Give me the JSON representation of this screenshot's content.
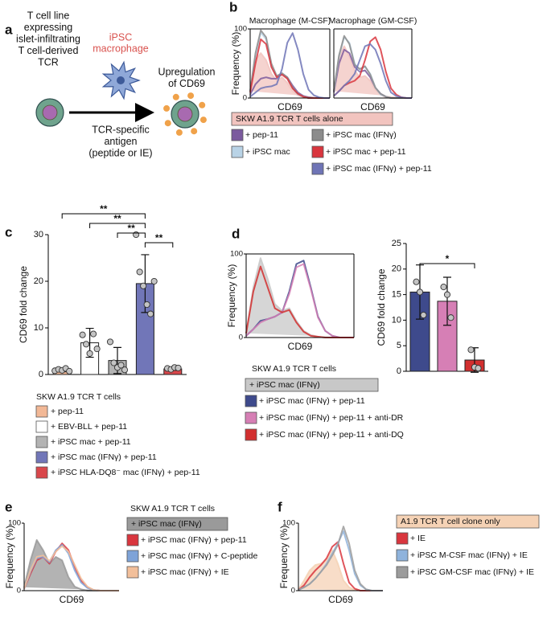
{
  "panel_a": {
    "label": "a",
    "t_cell": [
      "T cell line",
      "expressing",
      "islet-infiltrating",
      "T cell-derived",
      "TCR"
    ],
    "macrophage": [
      "iPSC",
      "macrophage"
    ],
    "result": [
      "Upregulation",
      "of CD69"
    ],
    "antigen": [
      "TCR-specific",
      "antigen",
      "(peptide or IE)"
    ]
  },
  "panel_b": {
    "label": "b",
    "type": "histogram",
    "titles": [
      "Macrophage (M-CSF)",
      "Macrophage (GM-CSF)"
    ],
    "xlabel": "CD69",
    "ylabel": "Frequency (%)",
    "ylim": [
      0,
      100
    ],
    "yticks": [
      0,
      100
    ],
    "series": [
      {
        "name": "SKW A1.9 TCR T cells alone",
        "color": "#f2c4bf",
        "fill": true,
        "values": [
          [
            10,
            55,
            65,
            55,
            35,
            25,
            30,
            22,
            10,
            4,
            1,
            0,
            0,
            0,
            0,
            0
          ],
          [
            10,
            60,
            75,
            60,
            40,
            30,
            32,
            25,
            12,
            5,
            1,
            0,
            0,
            0,
            0,
            0
          ]
        ]
      },
      {
        "name": "+ pep-11",
        "color": "#7b5a9e",
        "fill": false,
        "values": [
          [
            5,
            20,
            28,
            30,
            28,
            28,
            35,
            30,
            18,
            8,
            3,
            1,
            0,
            0,
            0,
            0
          ],
          [
            8,
            50,
            70,
            65,
            45,
            38,
            40,
            30,
            15,
            6,
            2,
            0,
            0,
            0,
            0,
            0
          ]
        ]
      },
      {
        "name": "+ iPSC mac",
        "color": "#b9d3e6",
        "fill": false,
        "values": [
          [
            10,
            60,
            95,
            85,
            45,
            30,
            35,
            28,
            14,
            5,
            2,
            0,
            0,
            0,
            0,
            0
          ],
          [
            10,
            60,
            88,
            80,
            50,
            40,
            45,
            35,
            15,
            5,
            2,
            0,
            0,
            0,
            0,
            0
          ]
        ]
      },
      {
        "name": "+ iPSC mac (IFNγ)",
        "color": "#8c8c8c",
        "fill": false,
        "values": [
          [
            10,
            65,
            98,
            88,
            50,
            32,
            36,
            30,
            15,
            6,
            2,
            0,
            0,
            0,
            0,
            0
          ],
          [
            10,
            62,
            90,
            78,
            48,
            42,
            46,
            34,
            15,
            6,
            2,
            0,
            0,
            0,
            0,
            0
          ]
        ]
      },
      {
        "name": "+ iPSC mac + pep-11",
        "color": "#d9363e",
        "fill": false,
        "values": [
          [
            8,
            50,
            85,
            78,
            45,
            30,
            34,
            28,
            14,
            6,
            2,
            0,
            0,
            0,
            0,
            0
          ],
          [
            3,
            10,
            18,
            22,
            25,
            32,
            55,
            82,
            88,
            70,
            38,
            14,
            5,
            1,
            0,
            0
          ]
        ]
      },
      {
        "name": "+ iPSC mac (IFNγ) + pep-11",
        "color": "#6f74b6",
        "fill": false,
        "values": [
          [
            2,
            8,
            14,
            16,
            17,
            20,
            42,
            80,
            94,
            70,
            35,
            12,
            4,
            1,
            0,
            0
          ],
          [
            3,
            10,
            18,
            25,
            35,
            55,
            75,
            78,
            70,
            50,
            25,
            8,
            3,
            1,
            0,
            0
          ]
        ]
      }
    ]
  },
  "panel_c": {
    "label": "c",
    "type": "bar",
    "ylabel": "CD69 fold change",
    "ylim": [
      0,
      30
    ],
    "yticks": [
      0,
      10,
      20,
      30
    ],
    "legend_title": "SKW A1.9 TCR T cells",
    "names": [
      "+ pep-11",
      "+ EBV-BLL + pep-11",
      "+ iPSC mac + pep-11",
      "+ iPSC mac (IFNγ) + pep-11",
      "+ iPSC HLA-DQ8⁻ mac (IFNγ) + pep-11"
    ],
    "colors": [
      "#f2b896",
      "#ffffff",
      "#b3b3b3",
      "#7176b8",
      "#d9474b"
    ],
    "values": [
      1.0,
      6.8,
      3.0,
      19.5,
      1.2
    ],
    "errors": [
      0.4,
      3.1,
      2.8,
      6.2,
      0.3
    ],
    "points": [
      [
        0.8,
        1.1,
        0.9,
        1.3,
        0.7
      ],
      [
        8.5,
        6.5,
        4.5,
        8.7,
        5.5
      ],
      [
        7,
        2.5,
        1.5,
        2,
        1
      ],
      [
        30,
        22,
        19,
        15,
        13,
        20
      ],
      [
        1.3,
        1.1,
        1.5,
        1.4
      ]
    ],
    "brackets": [
      {
        "label": "**",
        "between": [
          0,
          3
        ]
      },
      {
        "label": "**",
        "between": [
          1,
          3
        ]
      },
      {
        "label": "**",
        "between": [
          2,
          3
        ]
      },
      {
        "label": "**",
        "between": [
          3,
          4
        ]
      }
    ]
  },
  "panel_d": {
    "label": "d",
    "legend_title": "SKW A1.9 TCR T cells",
    "histogram": {
      "type": "histogram",
      "xlabel": "CD69",
      "ylabel": "Frequency (%)",
      "ylim": [
        0,
        100
      ],
      "yticks": [
        0,
        100
      ],
      "series": [
        {
          "name": "+ iPSC mac (IFNγ)",
          "color": "#c8c8c8",
          "fill": true,
          "values": [
            5,
            60,
            95,
            70,
            40,
            32,
            35,
            20,
            8,
            3,
            1,
            0,
            0,
            0,
            0,
            0
          ]
        },
        {
          "name": "+ iPSC mac (IFNγ) + pep-11",
          "color": "#3e4a8c",
          "fill": false,
          "values": [
            2,
            10,
            20,
            22,
            25,
            30,
            55,
            88,
            92,
            60,
            25,
            8,
            2,
            0,
            0,
            0
          ]
        },
        {
          "name": "+ iPSC mac (IFNγ) + pep-11 + anti-DR",
          "color": "#d67fb5",
          "fill": false,
          "values": [
            2,
            10,
            18,
            22,
            25,
            30,
            52,
            84,
            88,
            58,
            24,
            8,
            2,
            0,
            0,
            0
          ]
        },
        {
          "name": "+ iPSC mac (IFNγ) + pep-11 + anti-DQ",
          "color": "#d22f2f",
          "fill": false,
          "values": [
            5,
            55,
            85,
            60,
            35,
            30,
            33,
            18,
            7,
            2,
            1,
            0,
            0,
            0,
            0,
            0
          ]
        }
      ]
    },
    "bar": {
      "type": "bar",
      "ylabel": "CD69 fold change",
      "ylim": [
        0,
        25
      ],
      "yticks": [
        0,
        5,
        10,
        15,
        20,
        25
      ],
      "colors": [
        "#3e4a8c",
        "#d67fb5",
        "#d22f2f"
      ],
      "values": [
        15.5,
        13.7,
        2.2
      ],
      "errors": [
        5.3,
        4.7,
        2.4
      ],
      "points": [
        [
          17.5,
          15.5,
          11
        ],
        [
          16.5,
          15,
          10.5
        ],
        [
          4.2,
          0.8,
          0.6
        ]
      ],
      "brackets": [
        {
          "label": "*",
          "between": [
            0,
            2
          ]
        }
      ]
    }
  },
  "panel_e": {
    "label": "e",
    "type": "histogram",
    "xlabel": "CD69",
    "ylabel": "Frequency (%)",
    "ylim": [
      0,
      100
    ],
    "yticks": [
      0,
      100
    ],
    "legend_title": "SKW A1.9 TCR T cells",
    "series": [
      {
        "name": "+ iPSC mac (IFNγ)",
        "color": "#9a9a9a",
        "fill": true,
        "values": [
          5,
          45,
          75,
          60,
          40,
          50,
          45,
          20,
          6,
          2,
          0,
          0,
          0,
          0,
          0,
          0
        ]
      },
      {
        "name": "+ iPSC mac (IFNγ) + pep-11",
        "color": "#d9363e",
        "fill": false,
        "values": [
          3,
          25,
          45,
          50,
          40,
          58,
          70,
          60,
          35,
          15,
          5,
          1,
          0,
          0,
          0,
          0
        ]
      },
      {
        "name": "+ iPSC mac (IFNγ) + C-peptide",
        "color": "#7ea3d8",
        "fill": false,
        "values": [
          3,
          28,
          48,
          50,
          42,
          60,
          68,
          55,
          30,
          12,
          4,
          1,
          0,
          0,
          0,
          0
        ]
      },
      {
        "name": "+ iPSC mac (IFNγ) + IE",
        "color": "#f2bf9a",
        "fill": false,
        "values": [
          3,
          30,
          50,
          52,
          44,
          58,
          66,
          58,
          38,
          18,
          6,
          1,
          0,
          0,
          0,
          0
        ]
      }
    ]
  },
  "panel_f": {
    "label": "f",
    "type": "histogram",
    "xlabel": "CD69",
    "ylabel": "Frequency (%)",
    "ylim": [
      0,
      100
    ],
    "yticks": [
      0,
      100
    ],
    "series": [
      {
        "name": "A1.9 TCR T cell clone only",
        "color": "#f5d2b5",
        "fill": true,
        "values": [
          2,
          15,
          30,
          38,
          40,
          45,
          60,
          40,
          15,
          5,
          1,
          0,
          0,
          0,
          0,
          0
        ]
      },
      {
        "name": "+ IE",
        "color": "#d9363e",
        "fill": false,
        "values": [
          1,
          8,
          20,
          30,
          38,
          48,
          65,
          72,
          40,
          12,
          3,
          0,
          0,
          0,
          0,
          0
        ]
      },
      {
        "name": "+ iPSC M-CSF mac (IFNγ) + IE",
        "color": "#8fb3dc",
        "fill": false,
        "values": [
          1,
          5,
          10,
          18,
          28,
          40,
          55,
          70,
          88,
          60,
          25,
          8,
          2,
          0,
          0,
          0
        ]
      },
      {
        "name": "+ iPSC GM-CSF mac (IFNγ) + IE",
        "color": "#9c9c9c",
        "fill": false,
        "values": [
          1,
          5,
          10,
          18,
          28,
          38,
          52,
          68,
          95,
          70,
          30,
          10,
          2,
          0,
          0,
          0
        ]
      }
    ]
  }
}
